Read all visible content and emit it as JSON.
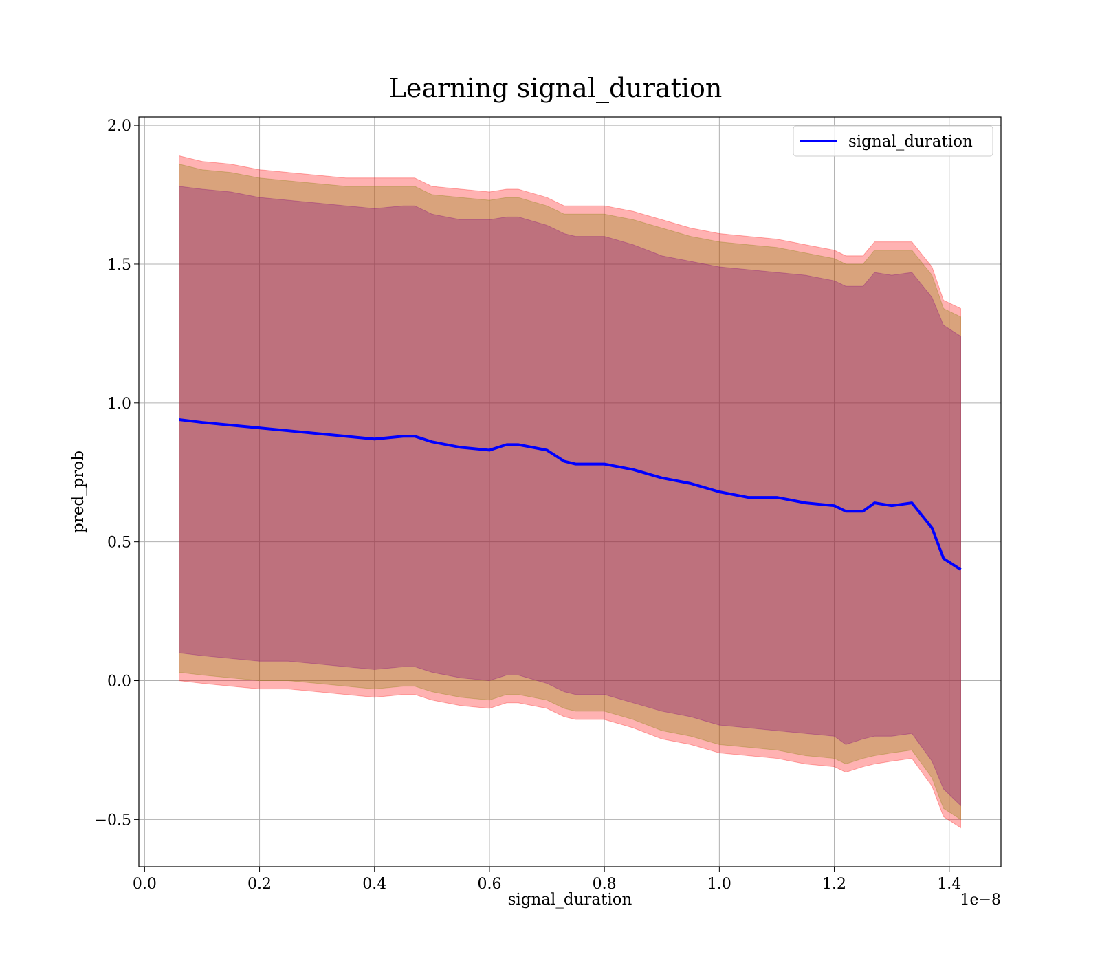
{
  "chart_data": {
    "type": "line",
    "title": "Learning signal_duration",
    "xlabel": "signal_duration",
    "ylabel": "pred_prob",
    "x_offset_text": "1e−8",
    "x_scale_exponent": -8,
    "xlim": [
      -1e-10,
      1.49e-08
    ],
    "ylim": [
      -0.67,
      2.03
    ],
    "grid": true,
    "legend_position": "upper right",
    "x_ticks": [
      0.0,
      2e-09,
      4e-09,
      6e-09,
      8e-09,
      1e-08,
      1.2e-08,
      1.4e-08
    ],
    "x_tick_labels": [
      "0.0",
      "0.2",
      "0.4",
      "0.6",
      "0.8",
      "1.0",
      "1.2",
      "1.4"
    ],
    "y_ticks": [
      -0.5,
      0.0,
      0.5,
      1.0,
      1.5,
      2.0
    ],
    "y_tick_labels": [
      "−0.5",
      "0.0",
      "0.5",
      "1.0",
      "1.5",
      "2.0"
    ],
    "x": [
      6e-10,
      1e-09,
      1.5e-09,
      2e-09,
      2.5e-09,
      3e-09,
      3.5e-09,
      4e-09,
      4.5e-09,
      4.7e-09,
      5e-09,
      5.5e-09,
      6e-09,
      6.3e-09,
      6.5e-09,
      7e-09,
      7.3e-09,
      7.5e-09,
      8e-09,
      8.5e-09,
      9e-09,
      9.5e-09,
      1e-08,
      1.05e-08,
      1.1e-08,
      1.15e-08,
      1.2e-08,
      1.22e-08,
      1.25e-08,
      1.27e-08,
      1.3e-08,
      1.335e-08,
      1.37e-08,
      1.39e-08,
      1.42e-08
    ],
    "series": [
      {
        "name": "signal_duration",
        "color": "#0000ff",
        "values": [
          0.94,
          0.93,
          0.92,
          0.91,
          0.9,
          0.89,
          0.88,
          0.87,
          0.88,
          0.88,
          0.86,
          0.84,
          0.83,
          0.85,
          0.85,
          0.83,
          0.79,
          0.78,
          0.78,
          0.76,
          0.73,
          0.71,
          0.68,
          0.66,
          0.66,
          0.64,
          0.63,
          0.61,
          0.61,
          0.64,
          0.63,
          0.64,
          0.55,
          0.44,
          0.4
        ]
      }
    ],
    "bands": [
      {
        "color": "#ff0000",
        "opacity": 0.3,
        "upper": [
          1.89,
          1.87,
          1.86,
          1.84,
          1.83,
          1.82,
          1.81,
          1.81,
          1.81,
          1.81,
          1.78,
          1.77,
          1.76,
          1.77,
          1.77,
          1.74,
          1.71,
          1.71,
          1.71,
          1.69,
          1.66,
          1.63,
          1.61,
          1.6,
          1.59,
          1.57,
          1.55,
          1.53,
          1.53,
          1.58,
          1.58,
          1.58,
          1.49,
          1.37,
          1.34
        ],
        "lower": [
          0.0,
          -0.01,
          -0.02,
          -0.03,
          -0.03,
          -0.04,
          -0.05,
          -0.06,
          -0.05,
          -0.05,
          -0.07,
          -0.09,
          -0.1,
          -0.08,
          -0.08,
          -0.1,
          -0.13,
          -0.14,
          -0.14,
          -0.17,
          -0.21,
          -0.23,
          -0.26,
          -0.27,
          -0.28,
          -0.3,
          -0.31,
          -0.33,
          -0.31,
          -0.3,
          -0.29,
          -0.28,
          -0.38,
          -0.49,
          -0.53
        ]
      },
      {
        "color": "#808000",
        "opacity": 0.3,
        "upper": [
          1.86,
          1.84,
          1.83,
          1.81,
          1.8,
          1.79,
          1.78,
          1.78,
          1.78,
          1.78,
          1.75,
          1.74,
          1.73,
          1.74,
          1.74,
          1.71,
          1.68,
          1.68,
          1.68,
          1.66,
          1.63,
          1.6,
          1.58,
          1.57,
          1.56,
          1.54,
          1.52,
          1.5,
          1.5,
          1.55,
          1.55,
          1.55,
          1.46,
          1.34,
          1.31
        ],
        "lower": [
          0.03,
          0.02,
          0.01,
          0.0,
          0.0,
          -0.01,
          -0.02,
          -0.03,
          -0.02,
          -0.02,
          -0.04,
          -0.06,
          -0.07,
          -0.05,
          -0.05,
          -0.07,
          -0.1,
          -0.11,
          -0.11,
          -0.14,
          -0.18,
          -0.2,
          -0.23,
          -0.24,
          -0.25,
          -0.27,
          -0.28,
          -0.3,
          -0.28,
          -0.27,
          -0.26,
          -0.25,
          -0.35,
          -0.46,
          -0.5
        ]
      },
      {
        "color": "#800080",
        "opacity": 0.3,
        "upper": [
          1.78,
          1.77,
          1.76,
          1.74,
          1.73,
          1.72,
          1.71,
          1.7,
          1.71,
          1.71,
          1.68,
          1.66,
          1.66,
          1.67,
          1.67,
          1.64,
          1.61,
          1.6,
          1.6,
          1.57,
          1.53,
          1.51,
          1.49,
          1.48,
          1.47,
          1.46,
          1.44,
          1.42,
          1.42,
          1.47,
          1.46,
          1.47,
          1.38,
          1.28,
          1.24
        ],
        "lower": [
          0.1,
          0.09,
          0.08,
          0.07,
          0.07,
          0.06,
          0.05,
          0.04,
          0.05,
          0.05,
          0.03,
          0.01,
          0.0,
          0.02,
          0.02,
          -0.01,
          -0.04,
          -0.05,
          -0.05,
          -0.08,
          -0.11,
          -0.13,
          -0.16,
          -0.17,
          -0.18,
          -0.19,
          -0.2,
          -0.23,
          -0.21,
          -0.2,
          -0.2,
          -0.19,
          -0.29,
          -0.39,
          -0.45
        ]
      }
    ]
  }
}
